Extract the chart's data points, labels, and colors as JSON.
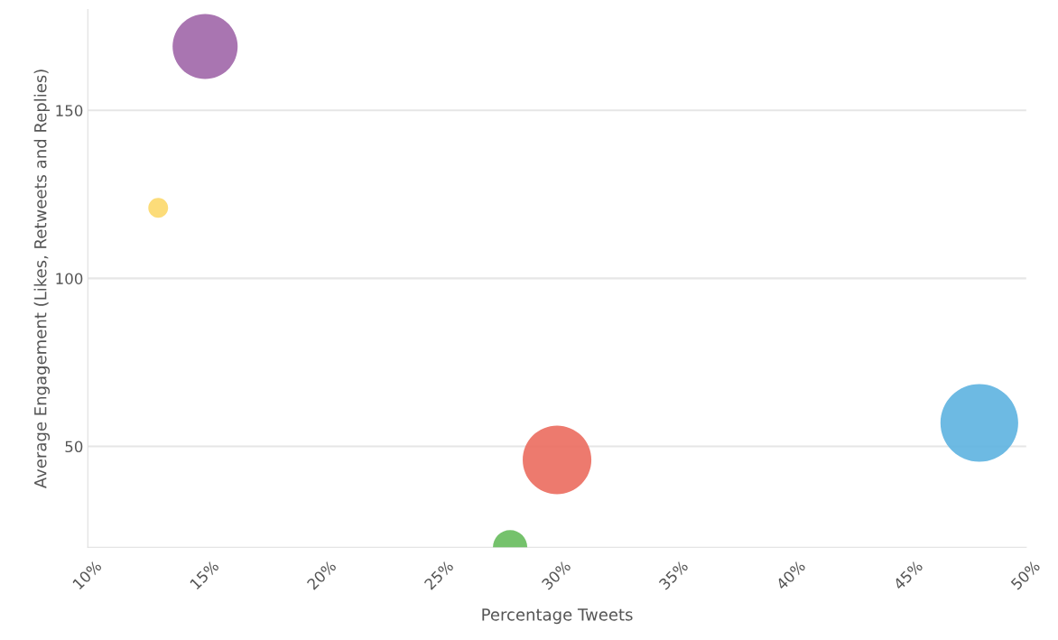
{
  "chart_data": {
    "type": "bubble",
    "xlabel": "Percentage Tweets",
    "ylabel": "Average Engagement (Likes, Retweets and Replies)",
    "x": [
      15,
      13,
      28,
      30,
      48
    ],
    "values": [
      169,
      121,
      20,
      46,
      57
    ],
    "sizes": [
      0.7,
      0.065,
      0.195,
      0.78,
      1
    ],
    "colors": [
      "#a066a8",
      "#fcd86a",
      "#66bb5c",
      "#eb6b5e",
      "#5db3e0"
    ],
    "xlim": [
      10,
      50
    ],
    "xticks": [
      {
        "value": 10,
        "label": "10%"
      },
      {
        "value": 15,
        "label": "15%"
      },
      {
        "value": 20,
        "label": "20%"
      },
      {
        "value": 25,
        "label": "25%"
      },
      {
        "value": 30,
        "label": "30%"
      },
      {
        "value": 35,
        "label": "35%"
      },
      {
        "value": 40,
        "label": "40%"
      },
      {
        "value": 45,
        "label": "45%"
      },
      {
        "value": 50,
        "label": "50%"
      }
    ],
    "ylim": [
      20,
      180
    ],
    "yticks": [
      50,
      100,
      150
    ],
    "grid": "y",
    "legend": false
  }
}
